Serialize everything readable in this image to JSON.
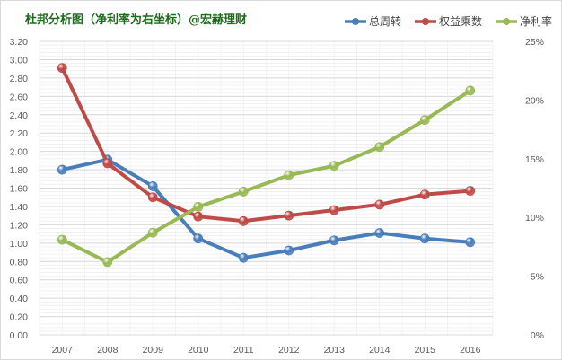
{
  "chart_data": {
    "type": "line",
    "title": "杜邦分析图（净利率为右坐标）@宏赫理财",
    "categories": [
      "2007",
      "2008",
      "2009",
      "2010",
      "2011",
      "2012",
      "2013",
      "2014",
      "2015",
      "2016"
    ],
    "y_left": {
      "range": [
        0,
        3.2
      ],
      "ticks": [
        "0.00",
        "0.20",
        "0.40",
        "0.60",
        "0.80",
        "1.00",
        "1.20",
        "1.40",
        "1.60",
        "1.80",
        "2.00",
        "2.20",
        "2.40",
        "2.60",
        "2.80",
        "3.00",
        "3.20"
      ]
    },
    "y_right": {
      "range": [
        0,
        25
      ],
      "unit": "%",
      "ticks": [
        "0%",
        "5%",
        "10%",
        "15%",
        "20%",
        "25%"
      ]
    },
    "grid": true,
    "legend_placement": "top-right",
    "series": [
      {
        "name": "总周转",
        "axis": "left",
        "color": "#4a7ebb",
        "values": [
          1.8,
          1.91,
          1.62,
          1.05,
          0.84,
          0.92,
          1.03,
          1.11,
          1.05,
          1.01
        ]
      },
      {
        "name": "权益乘数",
        "axis": "left",
        "color": "#be4b48",
        "values": [
          2.91,
          1.87,
          1.5,
          1.29,
          1.24,
          1.3,
          1.36,
          1.42,
          1.53,
          1.57
        ]
      },
      {
        "name": "净利率",
        "axis": "right",
        "color": "#98b954",
        "values": [
          8.1,
          6.2,
          8.7,
          10.9,
          12.2,
          13.6,
          14.4,
          16.0,
          18.3,
          20.8
        ]
      }
    ]
  }
}
